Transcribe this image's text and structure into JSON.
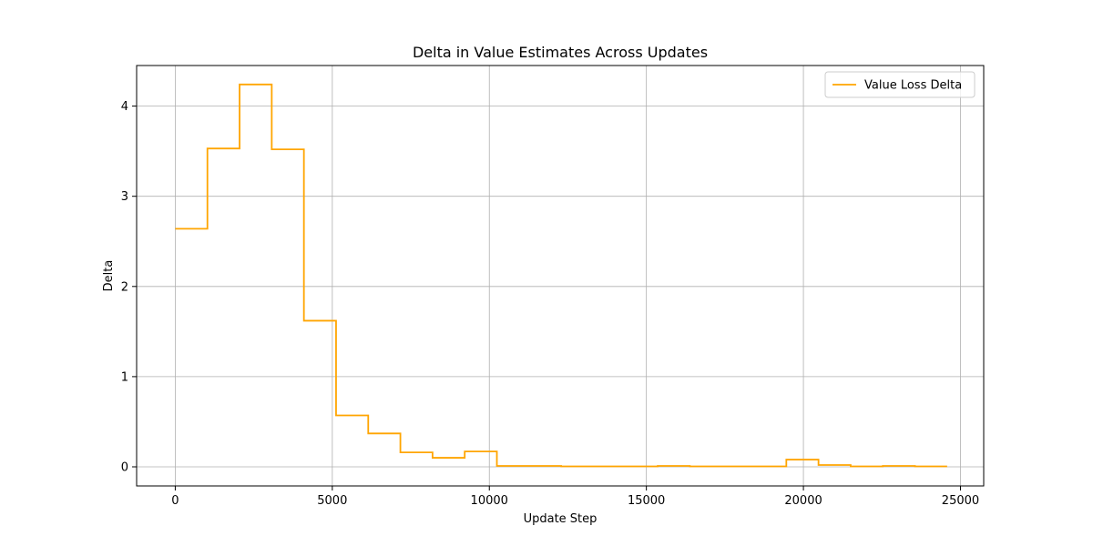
{
  "chart_data": {
    "type": "line",
    "title": "Delta in Value Estimates Across Updates",
    "xlabel": "Update Step",
    "ylabel": "Delta",
    "xlim": [
      -1230,
      25740
    ],
    "ylim": [
      -0.212,
      4.45
    ],
    "xticks": [
      0,
      5000,
      10000,
      15000,
      20000,
      25000
    ],
    "yticks": [
      0,
      1,
      2,
      3,
      4
    ],
    "grid": true,
    "legend_position": "top-right",
    "step_where": "post",
    "series": [
      {
        "name": "Value Loss Delta",
        "color": "#ffa500",
        "x": [
          0,
          1024,
          2048,
          3072,
          4096,
          5120,
          6144,
          7168,
          8192,
          9216,
          10240,
          11264,
          12288,
          13312,
          14336,
          15360,
          16384,
          17408,
          18432,
          19456,
          20480,
          21504,
          22528,
          23552,
          24576
        ],
        "y": [
          2.64,
          3.53,
          4.24,
          3.52,
          1.62,
          0.57,
          0.37,
          0.16,
          0.1,
          0.17,
          0.01,
          0.01,
          0.005,
          0.005,
          0.005,
          0.01,
          0.005,
          0.005,
          0.005,
          0.08,
          0.02,
          0.005,
          0.01,
          0.005,
          0.005
        ]
      }
    ]
  }
}
